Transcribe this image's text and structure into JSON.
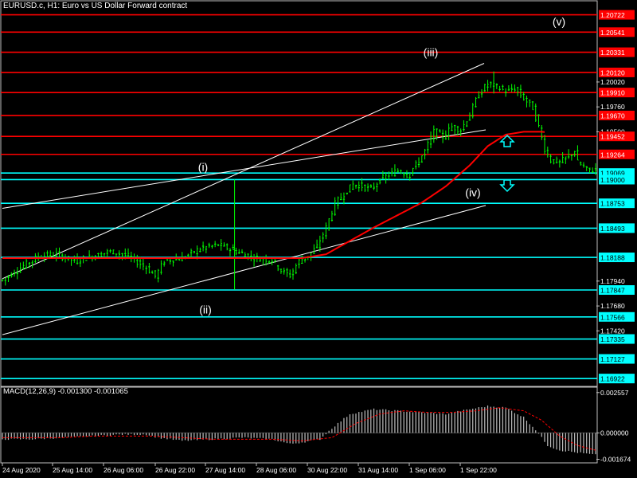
{
  "header": {
    "title": "EURUSD.c, H1:  Euro vs US Dollar Forward contract"
  },
  "colors": {
    "background": "#000000",
    "frame": "#c0c0c0",
    "candle": "#00ff00",
    "moving_average": "#ff0000",
    "resistance_line": "#ff0000",
    "support_line": "#00ffff",
    "channel_line": "#ffffff",
    "macd_hist": "#c0c0c0",
    "macd_signal": "#ff0000",
    "arrow": "#00ffff"
  },
  "chart_data": {
    "type": "candlestick",
    "symbol": "EURUSD.c",
    "timeframe": "H1",
    "ylim": [
      1.1684,
      1.2086
    ],
    "x_ticks": [
      "24 Aug 2020",
      "25 Aug 14:00",
      "26 Aug 06:00",
      "26 Aug 22:00",
      "27 Aug 14:00",
      "28 Aug 06:00",
      "30 Aug 22:00",
      "31 Aug 14:00",
      "1 Sep 06:00",
      "1 Sep 22:00"
    ],
    "price_axis_ticks": [
      "1.20020",
      "1.19760",
      "1.19500",
      "1.17940",
      "1.17680",
      "1.17420"
    ],
    "price_path": [
      [
        0,
        1.1795
      ],
      [
        6,
        1.1808
      ],
      [
        12,
        1.182
      ],
      [
        18,
        1.1822
      ],
      [
        24,
        1.1815
      ],
      [
        30,
        1.182
      ],
      [
        36,
        1.1825
      ],
      [
        42,
        1.182
      ],
      [
        48,
        1.1808
      ],
      [
        51,
        1.1799
      ],
      [
        54,
        1.1815
      ],
      [
        60,
        1.1818
      ],
      [
        66,
        1.1828
      ],
      [
        72,
        1.1832
      ],
      [
        78,
        1.1825
      ],
      [
        84,
        1.1818
      ],
      [
        90,
        1.1816
      ],
      [
        93,
        1.1805
      ],
      [
        96,
        1.18
      ],
      [
        99,
        1.1815
      ],
      [
        102,
        1.182
      ],
      [
        105,
        1.183
      ],
      [
        108,
        1.185
      ],
      [
        111,
        1.1875
      ],
      [
        114,
        1.1885
      ],
      [
        117,
        1.1895
      ],
      [
        120,
        1.1893
      ],
      [
        123,
        1.189
      ],
      [
        126,
        1.19
      ],
      [
        129,
        1.1905
      ],
      [
        132,
        1.191
      ],
      [
        135,
        1.1905
      ],
      [
        138,
        1.1915
      ],
      [
        141,
        1.193
      ],
      [
        144,
        1.195
      ],
      [
        147,
        1.1945
      ],
      [
        150,
        1.1955
      ],
      [
        153,
        1.1952
      ],
      [
        156,
        1.1968
      ],
      [
        159,
        1.199
      ],
      [
        162,
        1.2
      ],
      [
        165,
        1.1997
      ],
      [
        168,
        1.1992
      ],
      [
        171,
        1.1995
      ],
      [
        174,
        1.1985
      ],
      [
        177,
        1.1975
      ],
      [
        179,
        1.1955
      ],
      [
        181,
        1.1932
      ],
      [
        183,
        1.192
      ],
      [
        186,
        1.1918
      ],
      [
        189,
        1.1925
      ],
      [
        191,
        1.193
      ],
      [
        192,
        1.1918
      ],
      [
        195,
        1.191
      ],
      [
        198,
        1.191
      ]
    ],
    "ma_points": [
      [
        0,
        1.1818
      ],
      [
        40,
        1.1818
      ],
      [
        100,
        1.1818
      ],
      [
        108,
        1.1822
      ],
      [
        116,
        1.1836
      ],
      [
        124,
        1.185
      ],
      [
        132,
        1.1863
      ],
      [
        140,
        1.1876
      ],
      [
        148,
        1.1893
      ],
      [
        156,
        1.1915
      ],
      [
        162,
        1.1935
      ],
      [
        168,
        1.1947
      ],
      [
        174,
        1.195
      ],
      [
        180,
        1.195
      ],
      [
        188,
        1.1948
      ],
      [
        196,
        1.1947
      ]
    ],
    "red_levels": [
      "1.20722",
      "1.20541",
      "1.20331",
      "1.20120",
      "1.19910",
      "1.19670",
      "1.19452",
      "1.19264"
    ],
    "cyan_levels": [
      "1.19069",
      "1.19000",
      "1.18753",
      "1.18493",
      "1.18188",
      "1.17847",
      "1.17566",
      "1.17335",
      "1.17127",
      "1.16922"
    ],
    "wave_labels": [
      "(i)",
      "(ii)",
      "(iii)",
      "(iv)",
      "(v)"
    ],
    "macd": {
      "label": "MACD(12,26,9) -0.001300 -0.001065",
      "axis_ticks": [
        "0.002557",
        "0.000000",
        "-0.001674"
      ],
      "ylim": [
        -0.0019,
        0.0029
      ],
      "histogram": [
        [
          0,
          -0.0004
        ],
        [
          10,
          -0.0004
        ],
        [
          20,
          -0.0003
        ],
        [
          30,
          -0.0002
        ],
        [
          40,
          -0.0001
        ],
        [
          48,
          -0.0001
        ],
        [
          52,
          -0.0003
        ],
        [
          60,
          -0.0005
        ],
        [
          70,
          -0.0004
        ],
        [
          80,
          -0.0003
        ],
        [
          90,
          -0.0004
        ],
        [
          96,
          -0.0007
        ],
        [
          100,
          -0.0006
        ],
        [
          106,
          -0.0004
        ],
        [
          110,
          0.0003
        ],
        [
          116,
          0.0012
        ],
        [
          124,
          0.0015
        ],
        [
          132,
          0.0014
        ],
        [
          140,
          0.0013
        ],
        [
          148,
          0.0012
        ],
        [
          156,
          0.0015
        ],
        [
          162,
          0.0017
        ],
        [
          168,
          0.0016
        ],
        [
          174,
          0.001
        ],
        [
          178,
          0.0002
        ],
        [
          182,
          -0.0008
        ],
        [
          186,
          -0.0011
        ],
        [
          190,
          -0.0012
        ],
        [
          194,
          -0.0013
        ],
        [
          198,
          -0.0014
        ]
      ],
      "signal": [
        [
          0,
          -0.0003
        ],
        [
          10,
          -0.0003
        ],
        [
          20,
          -0.0003
        ],
        [
          30,
          -0.0002
        ],
        [
          40,
          -0.0002
        ],
        [
          50,
          -0.0002
        ],
        [
          60,
          -0.0003
        ],
        [
          70,
          -0.0004
        ],
        [
          80,
          -0.0004
        ],
        [
          90,
          -0.0004
        ],
        [
          100,
          -0.0005
        ],
        [
          110,
          -0.0003
        ],
        [
          118,
          0.0006
        ],
        [
          126,
          0.0012
        ],
        [
          134,
          0.0014
        ],
        [
          142,
          0.0013
        ],
        [
          150,
          0.0013
        ],
        [
          158,
          0.0014
        ],
        [
          166,
          0.0016
        ],
        [
          174,
          0.0014
        ],
        [
          180,
          0.0008
        ],
        [
          186,
          -0.0002
        ],
        [
          192,
          -0.0008
        ],
        [
          198,
          -0.0011
        ]
      ]
    }
  }
}
